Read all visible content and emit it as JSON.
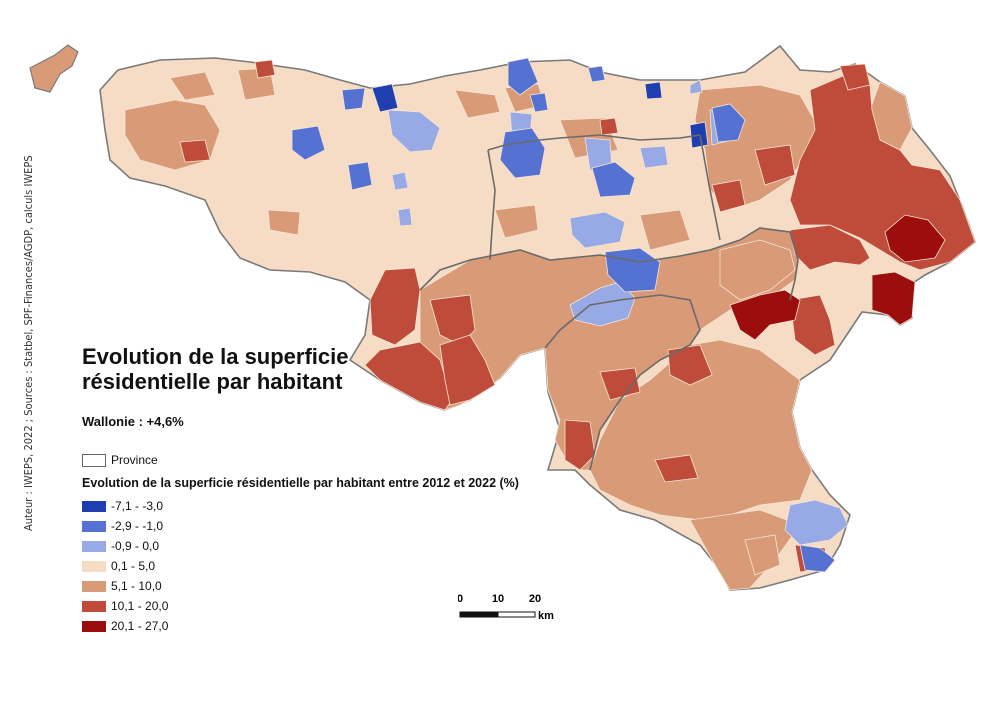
{
  "map": {
    "title": "Evolution de la superficie résidentielle par habitant",
    "subtitle": "Wallonie : +4,6%",
    "credit": "Auteur : IWEPS, 2022 ; Sources : Statbel, SPF-Finances/AGDP, calculs IWEPS",
    "region": "Wallonie",
    "legend": {
      "province_label": "Province",
      "title": "Evolution de la superficie résidentielle par habitant entre 2012 et 2022 (%)",
      "classes": [
        {
          "label": "-7,1 - -3,0",
          "color": "#1f3fb0"
        },
        {
          "label": "-2,9 - -1,0",
          "color": "#5572d2"
        },
        {
          "label": "-0,9 - 0,0",
          "color": "#97aae6"
        },
        {
          "label": "0,1 - 5,0",
          "color": "#f6dcc4"
        },
        {
          "label": "5,1 - 10,0",
          "color": "#d99a78"
        },
        {
          "label": "10,1 - 20,0",
          "color": "#bf4c3a"
        },
        {
          "label": "20,1 - 27,0",
          "color": "#9c0d0d"
        }
      ]
    },
    "scale_bar": {
      "ticks": [
        "0",
        "10",
        "20"
      ],
      "unit": "km"
    }
  }
}
